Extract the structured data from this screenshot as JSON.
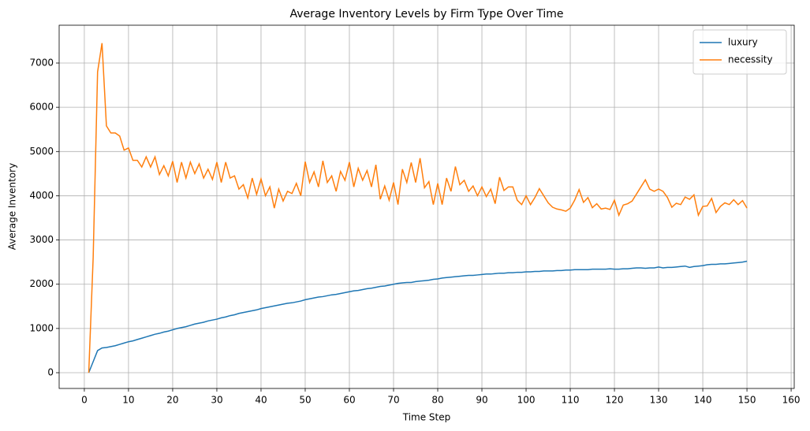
{
  "chart_data": {
    "type": "line",
    "title": "Average Inventory Levels by Firm Type Over Time",
    "xlabel": "Time Step",
    "ylabel": "Average Inventory",
    "x": [
      1,
      2,
      3,
      4,
      5,
      6,
      7,
      8,
      9,
      10,
      11,
      12,
      13,
      14,
      15,
      16,
      17,
      18,
      19,
      20,
      21,
      22,
      23,
      24,
      25,
      26,
      27,
      28,
      29,
      30,
      31,
      32,
      33,
      34,
      35,
      36,
      37,
      38,
      39,
      40,
      41,
      42,
      43,
      44,
      45,
      46,
      47,
      48,
      49,
      50,
      51,
      52,
      53,
      54,
      55,
      56,
      57,
      58,
      59,
      60,
      61,
      62,
      63,
      64,
      65,
      66,
      67,
      68,
      69,
      70,
      71,
      72,
      73,
      74,
      75,
      76,
      77,
      78,
      79,
      80,
      81,
      82,
      83,
      84,
      85,
      86,
      87,
      88,
      89,
      90,
      91,
      92,
      93,
      94,
      95,
      96,
      97,
      98,
      99,
      100,
      101,
      102,
      103,
      104,
      105,
      106,
      107,
      108,
      109,
      110,
      111,
      112,
      113,
      114,
      115,
      116,
      117,
      118,
      119,
      120,
      121,
      122,
      123,
      124,
      125,
      126,
      127,
      128,
      129,
      130,
      131,
      132,
      133,
      134,
      135,
      136,
      137,
      138,
      139,
      140,
      141,
      142,
      143,
      144,
      145,
      146,
      147,
      148,
      149,
      150
    ],
    "series": [
      {
        "name": "luxury",
        "color": "#1f77b4",
        "values": [
          0,
          250,
          500,
          560,
          570,
          590,
          610,
          640,
          670,
          700,
          720,
          750,
          780,
          810,
          840,
          870,
          890,
          920,
          940,
          970,
          1000,
          1020,
          1040,
          1070,
          1100,
          1120,
          1140,
          1170,
          1190,
          1210,
          1240,
          1260,
          1290,
          1310,
          1340,
          1360,
          1380,
          1400,
          1420,
          1450,
          1470,
          1490,
          1510,
          1530,
          1550,
          1570,
          1580,
          1600,
          1620,
          1650,
          1670,
          1690,
          1710,
          1720,
          1740,
          1760,
          1770,
          1790,
          1810,
          1830,
          1850,
          1860,
          1880,
          1900,
          1910,
          1930,
          1950,
          1960,
          1980,
          2000,
          2020,
          2030,
          2040,
          2040,
          2060,
          2070,
          2080,
          2090,
          2110,
          2120,
          2140,
          2150,
          2160,
          2170,
          2180,
          2190,
          2200,
          2200,
          2210,
          2220,
          2230,
          2230,
          2240,
          2250,
          2250,
          2260,
          2260,
          2270,
          2270,
          2280,
          2280,
          2290,
          2290,
          2300,
          2300,
          2300,
          2310,
          2310,
          2320,
          2320,
          2330,
          2330,
          2330,
          2330,
          2340,
          2340,
          2340,
          2340,
          2350,
          2340,
          2340,
          2350,
          2350,
          2360,
          2370,
          2370,
          2360,
          2370,
          2370,
          2390,
          2370,
          2380,
          2380,
          2390,
          2400,
          2410,
          2380,
          2400,
          2410,
          2420,
          2440,
          2450,
          2450,
          2460,
          2460,
          2470,
          2480,
          2490,
          2500,
          2520
        ]
      },
      {
        "name": "necessity",
        "color": "#ff7f0e",
        "values": [
          0,
          2600,
          6800,
          7450,
          5580,
          5420,
          5420,
          5350,
          5030,
          5080,
          4800,
          4800,
          4650,
          4880,
          4650,
          4880,
          4480,
          4680,
          4450,
          4780,
          4300,
          4760,
          4400,
          4760,
          4500,
          4720,
          4400,
          4600,
          4370,
          4760,
          4300,
          4760,
          4400,
          4450,
          4150,
          4250,
          3950,
          4400,
          4030,
          4380,
          4000,
          4200,
          3720,
          4150,
          3880,
          4100,
          4050,
          4280,
          4000,
          4770,
          4300,
          4540,
          4200,
          4790,
          4300,
          4450,
          4100,
          4550,
          4350,
          4760,
          4200,
          4620,
          4350,
          4570,
          4200,
          4700,
          3920,
          4220,
          3900,
          4300,
          3800,
          4600,
          4300,
          4750,
          4300,
          4850,
          4180,
          4320,
          3800,
          4280,
          3800,
          4400,
          4100,
          4660,
          4250,
          4350,
          4100,
          4220,
          4000,
          4200,
          3980,
          4150,
          3820,
          4420,
          4120,
          4200,
          4200,
          3900,
          3800,
          4000,
          3800,
          3960,
          4160,
          4000,
          3840,
          3740,
          3700,
          3680,
          3650,
          3720,
          3900,
          4140,
          3850,
          3960,
          3730,
          3820,
          3700,
          3720,
          3690,
          3900,
          3560,
          3790,
          3820,
          3880,
          4040,
          4200,
          4360,
          4150,
          4100,
          4150,
          4100,
          3960,
          3740,
          3830,
          3800,
          3970,
          3920,
          4020,
          3560,
          3760,
          3770,
          3940,
          3620,
          3760,
          3840,
          3800,
          3910,
          3800,
          3890,
          3720
        ]
      }
    ],
    "xlim": [
      -5.7,
      160.7
    ],
    "xticks": [
      0,
      10,
      20,
      30,
      40,
      50,
      60,
      70,
      80,
      90,
      100,
      110,
      120,
      130,
      140,
      150,
      160
    ],
    "ylim": [
      -356,
      7855
    ],
    "yticks": [
      0,
      1000,
      2000,
      3000,
      4000,
      5000,
      6000,
      7000
    ],
    "grid": true,
    "legend": "upper right"
  }
}
